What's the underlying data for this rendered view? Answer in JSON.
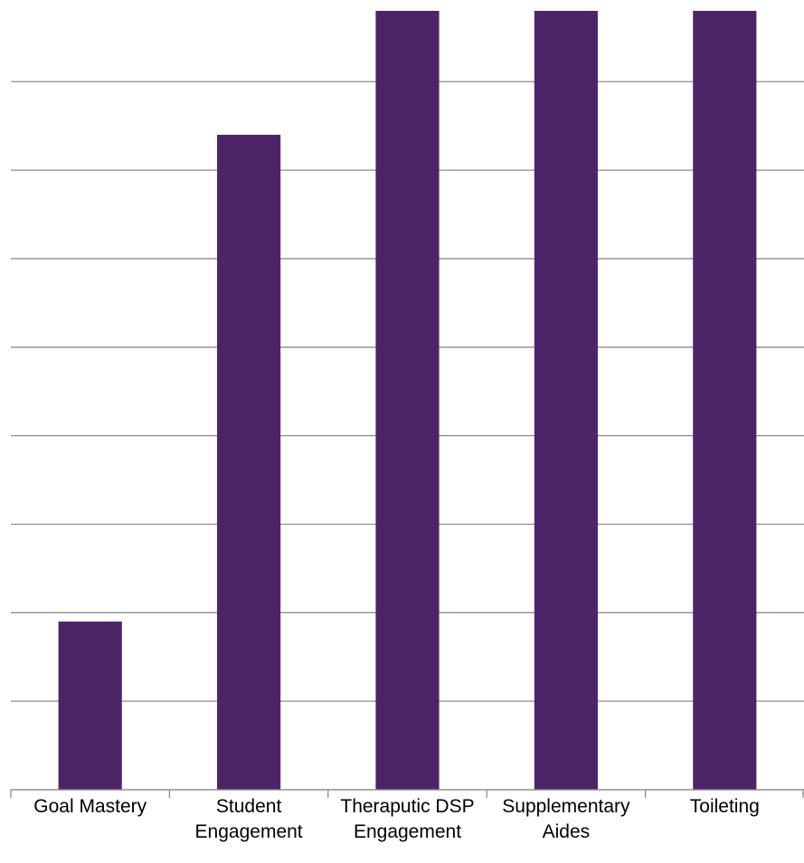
{
  "chart_data": {
    "type": "bar",
    "title": "",
    "xlabel": "",
    "ylabel": "",
    "categories": [
      [
        "Goal Mastery"
      ],
      [
        "Student",
        "Engagement"
      ],
      [
        "Theraputic DSP",
        "Engagement"
      ],
      [
        "Supplementary",
        "Aides"
      ],
      [
        "Toileting"
      ]
    ],
    "values": [
      1.9,
      7.4,
      8.8,
      8.8,
      8.8
    ],
    "ylim": [
      0,
      8.8
    ],
    "gridlines": [
      0,
      1,
      2,
      3,
      4,
      5,
      6,
      7,
      8
    ],
    "grid": true,
    "legend": "none",
    "bar_color": "#4e2469",
    "grid_color": "#8c8c8c",
    "text_color": "#000000"
  }
}
